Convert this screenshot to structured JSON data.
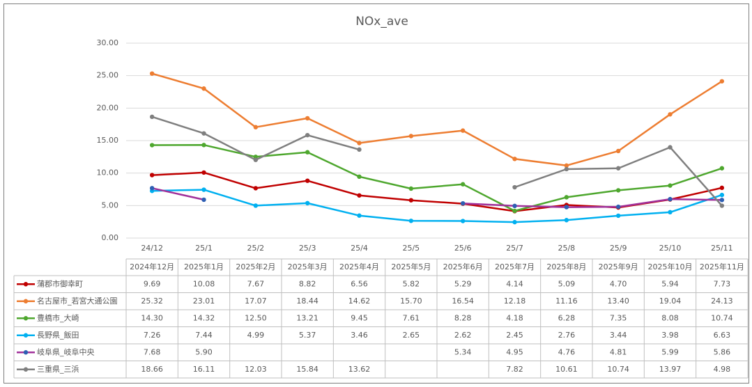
{
  "chart_data": {
    "type": "line",
    "title": "NOx_ave",
    "categories": [
      "24/12",
      "25/1",
      "25/2",
      "25/3",
      "25/4",
      "25/5",
      "25/6",
      "25/7",
      "25/8",
      "25/9",
      "25/10",
      "25/11"
    ],
    "table_headers": [
      "2024年12月",
      "2025年1月",
      "2025年2月",
      "2025年3月",
      "2025年4月",
      "2025年5月",
      "2025年6月",
      "2025年7月",
      "2025年8月",
      "2025年9月",
      "2025年10月",
      "2025年11月"
    ],
    "ylim": [
      0,
      30
    ],
    "yticks": [
      {
        "value": 0,
        "label": "0.00"
      },
      {
        "value": 5,
        "label": "5.00"
      },
      {
        "value": 10,
        "label": "10.00"
      },
      {
        "value": 15,
        "label": "15.00"
      },
      {
        "value": 20,
        "label": "20.00"
      },
      {
        "value": 25,
        "label": "25.00"
      },
      {
        "value": 30,
        "label": "30.00"
      }
    ],
    "grid": true,
    "series": [
      {
        "name": "蒲郡市御幸町",
        "color": "#c00000",
        "marker_color": "#c00000",
        "values": [
          9.69,
          10.08,
          7.67,
          8.82,
          6.56,
          5.82,
          5.29,
          4.14,
          5.09,
          4.7,
          5.94,
          7.73
        ],
        "value_labels": [
          "9.69",
          "10.08",
          "7.67",
          "8.82",
          "6.56",
          "5.82",
          "5.29",
          "4.14",
          "5.09",
          "4.70",
          "5.94",
          "7.73"
        ]
      },
      {
        "name": "名古屋市_若宮大通公園",
        "color": "#ed7d31",
        "marker_color": "#ed7d31",
        "values": [
          25.32,
          23.01,
          17.07,
          18.44,
          14.62,
          15.7,
          16.54,
          12.18,
          11.16,
          13.4,
          19.04,
          24.13
        ],
        "value_labels": [
          "25.32",
          "23.01",
          "17.07",
          "18.44",
          "14.62",
          "15.70",
          "16.54",
          "12.18",
          "11.16",
          "13.40",
          "19.04",
          "24.13"
        ]
      },
      {
        "name": "豊橋市_大崎",
        "color": "#4ea72e",
        "marker_color": "#4ea72e",
        "values": [
          14.3,
          14.32,
          12.5,
          13.21,
          9.45,
          7.61,
          8.28,
          4.18,
          6.28,
          7.35,
          8.08,
          10.74
        ],
        "value_labels": [
          "14.30",
          "14.32",
          "12.50",
          "13.21",
          "9.45",
          "7.61",
          "8.28",
          "4.18",
          "6.28",
          "7.35",
          "8.08",
          "10.74"
        ]
      },
      {
        "name": "長野県_飯田",
        "color": "#00b0f0",
        "marker_color": "#00b0f0",
        "values": [
          7.26,
          7.44,
          4.99,
          5.37,
          3.46,
          2.65,
          2.62,
          2.45,
          2.76,
          3.44,
          3.98,
          6.63
        ],
        "value_labels": [
          "7.26",
          "7.44",
          "4.99",
          "5.37",
          "3.46",
          "2.65",
          "2.62",
          "2.45",
          "2.76",
          "3.44",
          "3.98",
          "6.63"
        ]
      },
      {
        "name": "岐阜県_岐阜中央",
        "color": "#a0309a",
        "marker_color": "#2e5fb3",
        "values": [
          7.68,
          5.9,
          null,
          null,
          null,
          null,
          5.34,
          4.95,
          4.76,
          4.81,
          5.99,
          5.86
        ],
        "value_labels": [
          "7.68",
          "5.90",
          null,
          null,
          null,
          null,
          "5.34",
          "4.95",
          "4.76",
          "4.81",
          "5.99",
          "5.86"
        ]
      },
      {
        "name": "三重県_三浜",
        "color": "#7f7f7f",
        "marker_color": "#7f7f7f",
        "values": [
          18.66,
          16.11,
          12.03,
          15.84,
          13.62,
          null,
          null,
          7.82,
          10.61,
          10.74,
          13.97,
          4.98
        ],
        "value_labels": [
          "18.66",
          "16.11",
          "12.03",
          "15.84",
          "13.62",
          null,
          null,
          "7.82",
          "10.61",
          "10.74",
          "13.97",
          "4.98"
        ]
      }
    ]
  }
}
